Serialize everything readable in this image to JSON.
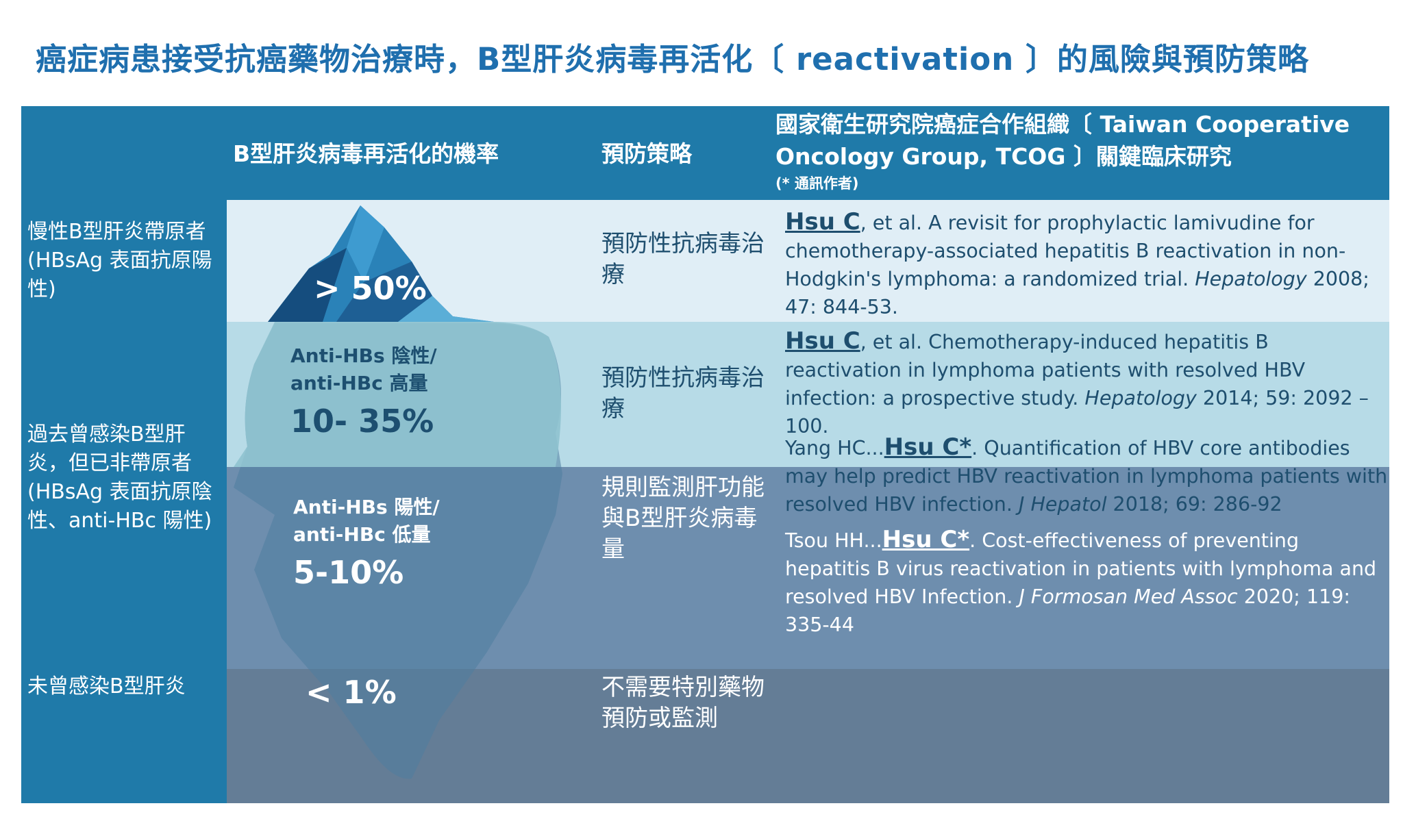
{
  "title": "癌症病患接受抗癌藥物治療時，B型肝炎病毒再活化〔 reactivation 〕的風險與預防策略",
  "header": {
    "col1": "B型肝炎病毒再活化的機率",
    "col2": "預防策略",
    "col3": "國家衛生研究院癌症合作組織〔 Taiwan Cooperative Oncology Group, TCOG 〕關鍵臨床研究",
    "col3_note": "(* 通訊作者)"
  },
  "rows": [
    {
      "label": "慢性B型肝炎帶原者 (HBsAg 表面抗原陽性)",
      "risk": "> 50%",
      "strategy": "預防性抗病毒治療"
    },
    {
      "label": "過去曾感染B型肝炎，但已非帶原者(HBsAg 表面抗原陰性、anti-HBc 陽性)",
      "sub_a": {
        "line1": "Anti-HBs 陰性/",
        "line2": "anti-HBc 高量",
        "risk": "10- 35%",
        "strategy": "預防性抗病毒治療"
      },
      "sub_b": {
        "line1": "Anti-HBs 陽性/",
        "line2": "anti-HBc  低量",
        "risk": "5-10%",
        "strategy": "規則監測肝功能與B型肝炎病毒量"
      }
    },
    {
      "label": "未曾感染B型肝炎",
      "risk": "< 1%",
      "strategy": "不需要特別藥物預防或監測"
    }
  ],
  "refs": [
    {
      "author": "Hsu C",
      "pre": "",
      "rest": ", et al. A revisit for prophylactic lamivudine for chemotherapy-associated hepatitis B reactivation in non-Hodgkin's lymphoma: a randomized trial. ",
      "journal": "Hepatology",
      "cite": " 2008; 47: 844-53."
    },
    {
      "author": "Hsu C",
      "pre": "",
      "rest": ", et al. Chemotherapy-induced hepatitis B reactivation in lymphoma patients with resolved HBV infection: a prospective study. ",
      "journal": "Hepatology",
      "cite": " 2014; 59: 2092 – 100."
    },
    {
      "author": "Hsu C*",
      "pre": "Yang HC...",
      "rest": ". Quantification of HBV core antibodies may help predict HBV reactivation in lymphoma patients with resolved HBV infection. ",
      "journal": "J Hepatol",
      "cite": " 2018; 69: 286-92"
    },
    {
      "author": "Hsu C*",
      "pre": "Tsou HH...",
      "rest": ". Cost-effectiveness of preventing hepatitis B virus reactivation in patients with lymphoma and resolved HBV Infection. ",
      "journal": "J Formosan Med Assoc",
      "cite": " 2020; 119: 335-44"
    }
  ],
  "colors": {
    "header": "#1f7aa9",
    "band1": "#e0eef6",
    "band2": "#b7dbe7",
    "band3": "#6e8eae",
    "band4": "#647d96",
    "title": "#1f6fae"
  }
}
